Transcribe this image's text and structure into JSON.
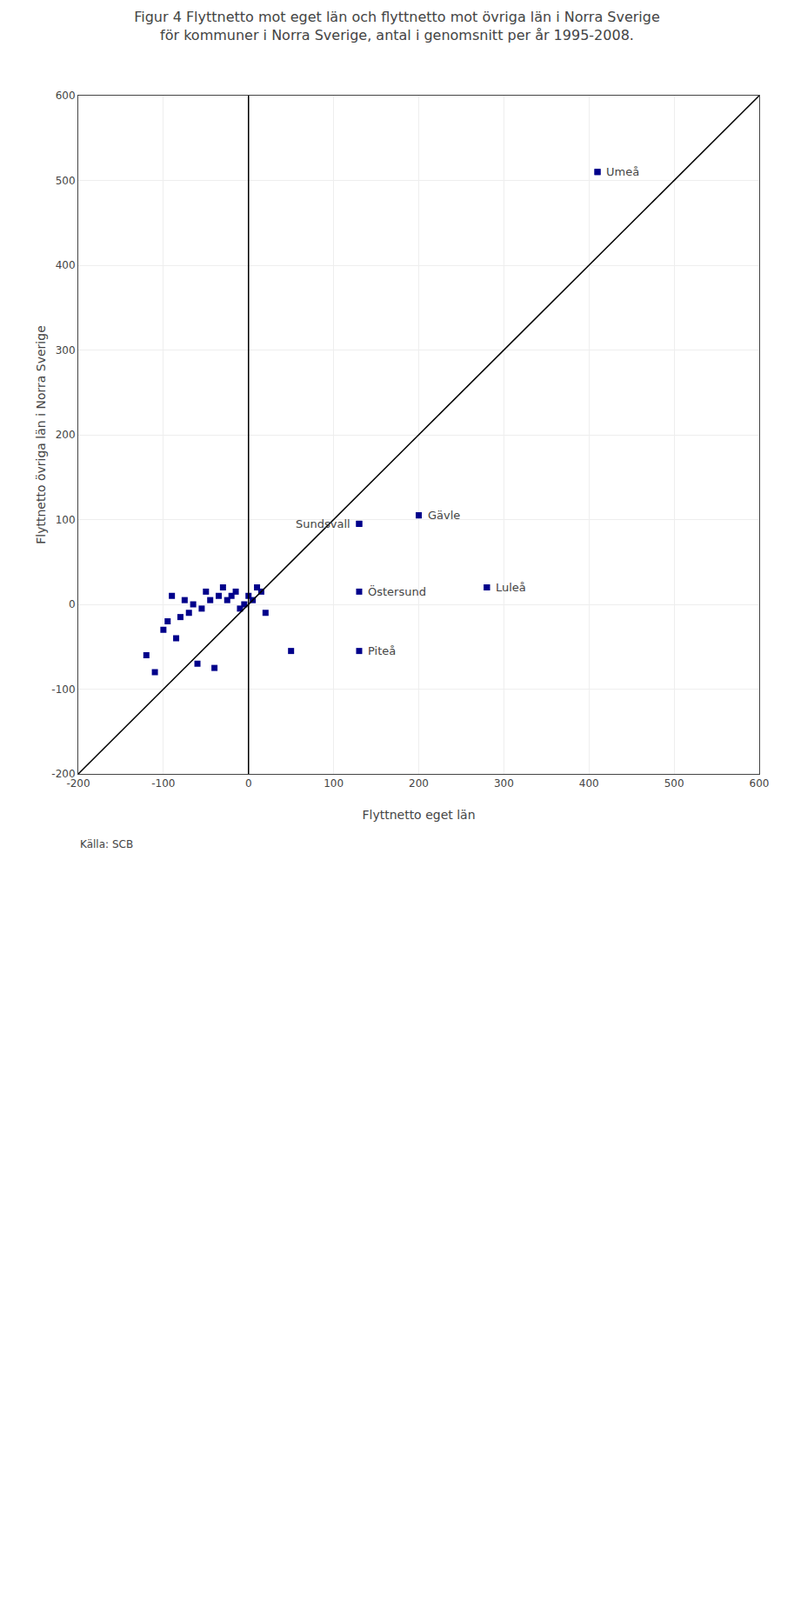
{
  "chart_data": {
    "type": "scatter",
    "title": "Figur 4 Flyttnetto mot eget län och flyttnetto mot övriga län i Norra Sverige för kommuner i Norra Sverige, antal i genomsnitt per år 1995-2008.",
    "xlabel": "Flyttnetto eget län",
    "ylabel": "Flyttnetto övriga län i Norra Sverige",
    "xlim": [
      -200,
      600
    ],
    "ylim": [
      -200,
      600
    ],
    "xticks": [
      -200,
      -100,
      0,
      100,
      200,
      300,
      400,
      500,
      600
    ],
    "yticks": [
      -200,
      -100,
      0,
      100,
      200,
      300,
      400,
      500,
      600
    ],
    "grid": true,
    "series": [
      {
        "type": "scatter",
        "marker": "square",
        "color": "#00008B",
        "x": [
          -120,
          -110,
          -100,
          -95,
          -90,
          -85,
          -80,
          -75,
          -70,
          -65,
          -60,
          -55,
          -50,
          -45,
          -40,
          -35,
          -30,
          -25,
          -20,
          -15,
          -10,
          -5,
          0,
          5,
          10,
          15,
          20,
          50,
          130,
          200,
          280,
          410
        ],
        "values": [
          -60,
          -80,
          -30,
          -20,
          10,
          -40,
          -15,
          5,
          -10,
          0,
          -70,
          -5,
          15,
          5,
          -75,
          10,
          20,
          5,
          10,
          15,
          -5,
          0,
          10,
          5,
          20,
          15,
          -10,
          -55,
          95,
          105,
          20,
          510
        ]
      },
      {
        "type": "scatter",
        "marker": "square",
        "color": "#00008B",
        "x": [
          410,
          200,
          130,
          130,
          280,
          130
        ],
        "values": [
          510,
          105,
          95,
          15,
          20,
          -55
        ]
      },
      {
        "type": "line",
        "line_style": "solid",
        "color": "black",
        "x": [
          -200,
          600
        ],
        "values": [
          -200,
          600
        ]
      },
      {
        "type": "line",
        "line_style": "solid",
        "color": "black",
        "x": [
          0,
          0
        ],
        "values": [
          -200,
          600
        ]
      }
    ],
    "annotations": [
      {
        "text": "Umeå",
        "x": 410,
        "y": 510
      },
      {
        "text": "Gävle",
        "x": 200,
        "y": 105
      },
      {
        "text": "Sundsvall",
        "x": 130,
        "y": 95
      },
      {
        "text": "Östersund",
        "x": 130,
        "y": 15
      },
      {
        "text": "Luleå",
        "x": 280,
        "y": 20
      },
      {
        "text": "Piteå",
        "x": 130,
        "y": -55
      }
    ],
    "source": "Källa: SCB"
  }
}
